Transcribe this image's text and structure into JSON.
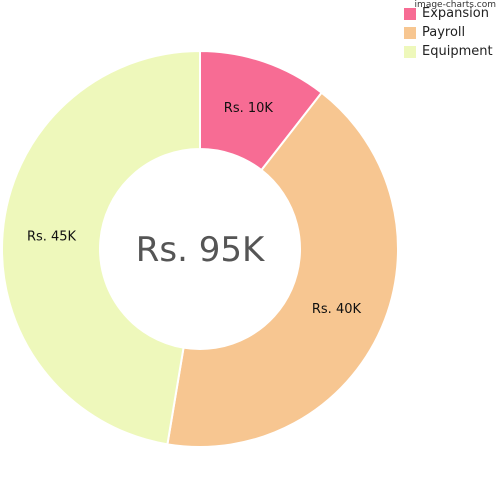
{
  "watermark": "image-charts.com",
  "chart_data": {
    "type": "pie",
    "variant": "doughnut",
    "categories": [
      "Expansion",
      "Payroll",
      "Equipment"
    ],
    "values": [
      10,
      40,
      45
    ],
    "data_labels": [
      "Rs. 10K",
      "Rs. 40K",
      "Rs. 45K"
    ],
    "colors": [
      "#f76c94",
      "#f7c691",
      "#eef8bb"
    ],
    "center_label": "Rs. 95K",
    "legend": {
      "position": "top-right",
      "entries": [
        "Expansion",
        "Payroll",
        "Equipment"
      ]
    }
  }
}
